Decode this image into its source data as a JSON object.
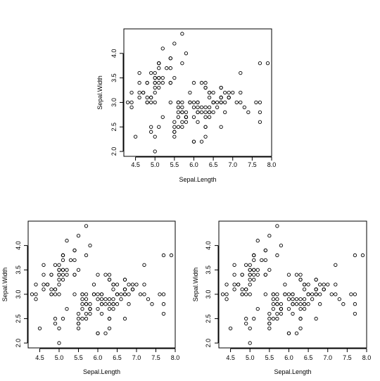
{
  "chart_data": [
    {
      "type": "scatter",
      "title": "",
      "xlabel": "Sepal.Length",
      "ylabel": "Sepal.Width",
      "xlim": [
        4.2,
        8.0
      ],
      "ylim": [
        1.9,
        4.5
      ],
      "xticks": [
        "4.5",
        "5.0",
        "5.5",
        "6.0",
        "6.5",
        "7.0",
        "7.5",
        "8.0"
      ],
      "yticks": [
        "2.0",
        "2.5",
        "3.0",
        "3.5",
        "4.0"
      ],
      "grid": false,
      "legend": "none",
      "marker": "open-circle",
      "color": "#000000",
      "series": [
        {
          "x": [
            5.1,
            4.9,
            4.7,
            4.6,
            5.0,
            5.4,
            4.6,
            5.0,
            4.4,
            4.9,
            5.4,
            4.8,
            4.8,
            4.3,
            5.8,
            5.7,
            5.4,
            5.1,
            5.7,
            5.1,
            5.4,
            5.1,
            4.6,
            5.1,
            4.8,
            5.0,
            5.0,
            5.2,
            5.2,
            4.7,
            4.8,
            5.4,
            5.2,
            5.5,
            4.9,
            5.0,
            5.5,
            4.9,
            4.4,
            5.1,
            5.0,
            4.5,
            4.4,
            5.0,
            5.1,
            4.8,
            5.1,
            4.6,
            5.3,
            5.0,
            7.0,
            6.4,
            6.9,
            5.5,
            6.5,
            5.7,
            6.3,
            4.9,
            6.6,
            5.2,
            5.0,
            5.9,
            6.0,
            6.1,
            5.6,
            6.7,
            5.6,
            5.8,
            6.2,
            5.6,
            5.9,
            6.1,
            6.3,
            6.1,
            6.4,
            6.6,
            6.8,
            6.7,
            6.0,
            5.7,
            5.5,
            5.5,
            5.8,
            6.0,
            5.4,
            6.0,
            6.7,
            6.3,
            5.6,
            5.5,
            5.5,
            6.1,
            5.8,
            5.0,
            5.6,
            5.7,
            5.7,
            6.2,
            5.1,
            5.7,
            6.3,
            5.8,
            7.1,
            6.3,
            6.5,
            7.6,
            4.9,
            7.3,
            6.7,
            7.2,
            6.5,
            6.4,
            6.8,
            5.7,
            5.8,
            6.4,
            6.5,
            7.7,
            7.7,
            6.0,
            6.9,
            5.6,
            7.7,
            6.3,
            6.7,
            7.2,
            6.2,
            6.1,
            6.4,
            7.2,
            7.4,
            7.9,
            6.4,
            6.3,
            6.1,
            7.7,
            6.3,
            6.4,
            6.0,
            6.9,
            6.7,
            6.9,
            5.8,
            6.8,
            6.7,
            6.7,
            6.3,
            6.5,
            6.2,
            5.9
          ],
          "y": [
            3.5,
            3.0,
            3.2,
            3.1,
            3.6,
            3.9,
            3.4,
            3.4,
            2.9,
            3.1,
            3.7,
            3.4,
            3.0,
            3.0,
            4.0,
            4.4,
            3.9,
            3.5,
            3.8,
            3.8,
            3.4,
            3.7,
            3.6,
            3.3,
            3.4,
            3.0,
            3.4,
            3.5,
            3.4,
            3.2,
            3.1,
            3.4,
            4.1,
            4.2,
            3.1,
            3.2,
            3.5,
            3.6,
            3.0,
            3.4,
            3.5,
            2.3,
            3.2,
            3.5,
            3.8,
            3.0,
            3.8,
            3.2,
            3.7,
            3.3,
            3.2,
            3.2,
            3.1,
            2.3,
            2.8,
            2.8,
            3.3,
            2.4,
            2.9,
            2.7,
            2.0,
            3.0,
            2.2,
            2.9,
            2.9,
            3.1,
            3.0,
            2.7,
            2.2,
            2.5,
            3.2,
            2.8,
            2.5,
            2.8,
            2.9,
            3.0,
            2.8,
            3.0,
            2.9,
            2.6,
            2.4,
            2.4,
            2.7,
            2.7,
            3.0,
            3.4,
            3.1,
            2.3,
            3.0,
            2.5,
            2.6,
            3.0,
            2.6,
            2.3,
            2.7,
            3.0,
            2.9,
            2.9,
            2.5,
            2.8,
            3.3,
            2.7,
            3.0,
            2.9,
            3.0,
            3.0,
            2.5,
            2.9,
            2.5,
            3.6,
            3.2,
            2.7,
            3.0,
            2.5,
            2.8,
            3.2,
            3.0,
            3.8,
            2.6,
            2.2,
            3.2,
            2.8,
            2.8,
            2.7,
            3.3,
            3.2,
            2.8,
            3.0,
            2.8,
            3.0,
            2.8,
            3.8,
            2.8,
            2.8,
            2.6,
            3.0,
            3.4,
            3.1,
            3.0,
            3.1,
            3.1,
            3.1,
            2.7,
            3.2,
            3.3,
            3.0,
            2.5,
            3.0,
            3.4,
            3.0
          ]
        }
      ]
    },
    {
      "type": "scatter",
      "title": "",
      "xlabel": "Sepal.Length",
      "ylabel": "Sepal.Width",
      "xlim": [
        4.2,
        8.0
      ],
      "ylim": [
        1.9,
        4.5
      ],
      "xticks": [
        "4.5",
        "5.0",
        "5.5",
        "6.0",
        "6.5",
        "7.0",
        "7.5",
        "8.0"
      ],
      "yticks": [
        "2.0",
        "2.5",
        "3.0",
        "3.5",
        "4.0"
      ],
      "grid": false,
      "legend": "none",
      "marker": "open-circle",
      "color": "#000000",
      "series": [
        {
          "x": [
            5.1,
            4.9,
            4.7,
            4.6,
            5.0,
            5.4,
            4.6,
            5.0,
            4.4,
            4.9,
            5.4,
            4.8,
            4.8,
            4.3,
            5.8,
            5.7,
            5.4,
            5.1,
            5.7,
            5.1,
            5.4,
            5.1,
            4.6,
            5.1,
            4.8,
            5.0,
            5.0,
            5.2,
            5.2,
            4.7,
            4.8,
            5.4,
            5.2,
            5.5,
            4.9,
            5.0,
            5.5,
            4.9,
            4.4,
            5.1,
            5.0,
            4.5,
            4.4,
            5.0,
            5.1,
            4.8,
            5.1,
            4.6,
            5.3,
            5.0,
            7.0,
            6.4,
            6.9,
            5.5,
            6.5,
            5.7,
            6.3,
            4.9,
            6.6,
            5.2,
            5.0,
            5.9,
            6.0,
            6.1,
            5.6,
            6.7,
            5.6,
            5.8,
            6.2,
            5.6,
            5.9,
            6.1,
            6.3,
            6.1,
            6.4,
            6.6,
            6.8,
            6.7,
            6.0,
            5.7,
            5.5,
            5.5,
            5.8,
            6.0,
            5.4,
            6.0,
            6.7,
            6.3,
            5.6,
            5.5,
            5.5,
            6.1,
            5.8,
            5.0,
            5.6,
            5.7,
            5.7,
            6.2,
            5.1,
            5.7,
            6.3,
            5.8,
            7.1,
            6.3,
            6.5,
            7.6,
            4.9,
            7.3,
            6.7,
            7.2,
            6.5,
            6.4,
            6.8,
            5.7,
            5.8,
            6.4,
            6.5,
            7.7,
            7.7,
            6.0,
            6.9,
            5.6,
            7.7,
            6.3,
            6.7,
            7.2,
            6.2,
            6.1,
            6.4,
            7.2,
            7.4,
            7.9,
            6.4,
            6.3,
            6.1,
            7.7,
            6.3,
            6.4,
            6.0,
            6.9,
            6.7,
            6.9,
            5.8,
            6.8,
            6.7,
            6.7,
            6.3,
            6.5,
            6.2,
            5.9
          ],
          "y": [
            3.5,
            3.0,
            3.2,
            3.1,
            3.6,
            3.9,
            3.4,
            3.4,
            2.9,
            3.1,
            3.7,
            3.4,
            3.0,
            3.0,
            4.0,
            4.4,
            3.9,
            3.5,
            3.8,
            3.8,
            3.4,
            3.7,
            3.6,
            3.3,
            3.4,
            3.0,
            3.4,
            3.5,
            3.4,
            3.2,
            3.1,
            3.4,
            4.1,
            4.2,
            3.1,
            3.2,
            3.5,
            3.6,
            3.0,
            3.4,
            3.5,
            2.3,
            3.2,
            3.5,
            3.8,
            3.0,
            3.8,
            3.2,
            3.7,
            3.3,
            3.2,
            3.2,
            3.1,
            2.3,
            2.8,
            2.8,
            3.3,
            2.4,
            2.9,
            2.7,
            2.0,
            3.0,
            2.2,
            2.9,
            2.9,
            3.1,
            3.0,
            2.7,
            2.2,
            2.5,
            3.2,
            2.8,
            2.5,
            2.8,
            2.9,
            3.0,
            2.8,
            3.0,
            2.9,
            2.6,
            2.4,
            2.4,
            2.7,
            2.7,
            3.0,
            3.4,
            3.1,
            2.3,
            3.0,
            2.5,
            2.6,
            3.0,
            2.6,
            2.3,
            2.7,
            3.0,
            2.9,
            2.9,
            2.5,
            2.8,
            3.3,
            2.7,
            3.0,
            2.9,
            3.0,
            3.0,
            2.5,
            2.9,
            2.5,
            3.6,
            3.2,
            2.7,
            3.0,
            2.5,
            2.8,
            3.2,
            3.0,
            3.8,
            2.6,
            2.2,
            3.2,
            2.8,
            2.8,
            2.7,
            3.3,
            3.2,
            2.8,
            3.0,
            2.8,
            3.0,
            2.8,
            3.8,
            2.8,
            2.8,
            2.6,
            3.0,
            3.4,
            3.1,
            3.0,
            3.1,
            3.1,
            3.1,
            2.7,
            3.2,
            3.3,
            3.0,
            2.5,
            3.0,
            3.4,
            3.0
          ]
        }
      ]
    },
    {
      "type": "scatter",
      "title": "",
      "xlabel": "Sepal.Length",
      "ylabel": "Sepal.Width",
      "xlim": [
        4.2,
        8.0
      ],
      "ylim": [
        1.9,
        4.5
      ],
      "xticks": [
        "4.5",
        "5.0",
        "5.5",
        "6.0",
        "6.5",
        "7.0",
        "7.5",
        "8.0"
      ],
      "yticks": [
        "2.0",
        "2.5",
        "3.0",
        "3.5",
        "4.0"
      ],
      "grid": false,
      "legend": "none",
      "marker": "open-circle",
      "color": "#000000",
      "series": [
        {
          "x": [
            5.1,
            4.9,
            4.7,
            4.6,
            5.0,
            5.4,
            4.6,
            5.0,
            4.4,
            4.9,
            5.4,
            4.8,
            4.8,
            4.3,
            5.8,
            5.7,
            5.4,
            5.1,
            5.7,
            5.1,
            5.4,
            5.1,
            4.6,
            5.1,
            4.8,
            5.0,
            5.0,
            5.2,
            5.2,
            4.7,
            4.8,
            5.4,
            5.2,
            5.5,
            4.9,
            5.0,
            5.5,
            4.9,
            4.4,
            5.1,
            5.0,
            4.5,
            4.4,
            5.0,
            5.1,
            4.8,
            5.1,
            4.6,
            5.3,
            5.0,
            7.0,
            6.4,
            6.9,
            5.5,
            6.5,
            5.7,
            6.3,
            4.9,
            6.6,
            5.2,
            5.0,
            5.9,
            6.0,
            6.1,
            5.6,
            6.7,
            5.6,
            5.8,
            6.2,
            5.6,
            5.9,
            6.1,
            6.3,
            6.1,
            6.4,
            6.6,
            6.8,
            6.7,
            6.0,
            5.7,
            5.5,
            5.5,
            5.8,
            6.0,
            5.4,
            6.0,
            6.7,
            6.3,
            5.6,
            5.5,
            5.5,
            6.1,
            5.8,
            5.0,
            5.6,
            5.7,
            5.7,
            6.2,
            5.1,
            5.7,
            6.3,
            5.8,
            7.1,
            6.3,
            6.5,
            7.6,
            4.9,
            7.3,
            6.7,
            7.2,
            6.5,
            6.4,
            6.8,
            5.7,
            5.8,
            6.4,
            6.5,
            7.7,
            7.7,
            6.0,
            6.9,
            5.6,
            7.7,
            6.3,
            6.7,
            7.2,
            6.2,
            6.1,
            6.4,
            7.2,
            7.4,
            7.9,
            6.4,
            6.3,
            6.1,
            7.7,
            6.3,
            6.4,
            6.0,
            6.9,
            6.7,
            6.9,
            5.8,
            6.8,
            6.7,
            6.7,
            6.3,
            6.5,
            6.2,
            5.9
          ],
          "y": [
            3.5,
            3.0,
            3.2,
            3.1,
            3.6,
            3.9,
            3.4,
            3.4,
            2.9,
            3.1,
            3.7,
            3.4,
            3.0,
            3.0,
            4.0,
            4.4,
            3.9,
            3.5,
            3.8,
            3.8,
            3.4,
            3.7,
            3.6,
            3.3,
            3.4,
            3.0,
            3.4,
            3.5,
            3.4,
            3.2,
            3.1,
            3.4,
            4.1,
            4.2,
            3.1,
            3.2,
            3.5,
            3.6,
            3.0,
            3.4,
            3.5,
            2.3,
            3.2,
            3.5,
            3.8,
            3.0,
            3.8,
            3.2,
            3.7,
            3.3,
            3.2,
            3.2,
            3.1,
            2.3,
            2.8,
            2.8,
            3.3,
            2.4,
            2.9,
            2.7,
            2.0,
            3.0,
            2.2,
            2.9,
            2.9,
            3.1,
            3.0,
            2.7,
            2.2,
            2.5,
            3.2,
            2.8,
            2.5,
            2.8,
            2.9,
            3.0,
            2.8,
            3.0,
            2.9,
            2.6,
            2.4,
            2.4,
            2.7,
            2.7,
            3.0,
            3.4,
            3.1,
            2.3,
            3.0,
            2.5,
            2.6,
            3.0,
            2.6,
            2.3,
            2.7,
            3.0,
            2.9,
            2.9,
            2.5,
            2.8,
            3.3,
            2.7,
            3.0,
            2.9,
            3.0,
            3.0,
            2.5,
            2.9,
            2.5,
            3.6,
            3.2,
            2.7,
            3.0,
            2.5,
            2.8,
            3.2,
            3.0,
            3.8,
            2.6,
            2.2,
            3.2,
            2.8,
            2.8,
            2.7,
            3.3,
            3.2,
            2.8,
            3.0,
            2.8,
            3.0,
            2.8,
            3.8,
            2.8,
            2.8,
            2.6,
            3.0,
            3.4,
            3.1,
            3.0,
            3.1,
            3.1,
            3.1,
            2.7,
            3.2,
            3.3,
            3.0,
            2.5,
            3.0,
            3.4,
            3.0
          ]
        }
      ]
    }
  ]
}
